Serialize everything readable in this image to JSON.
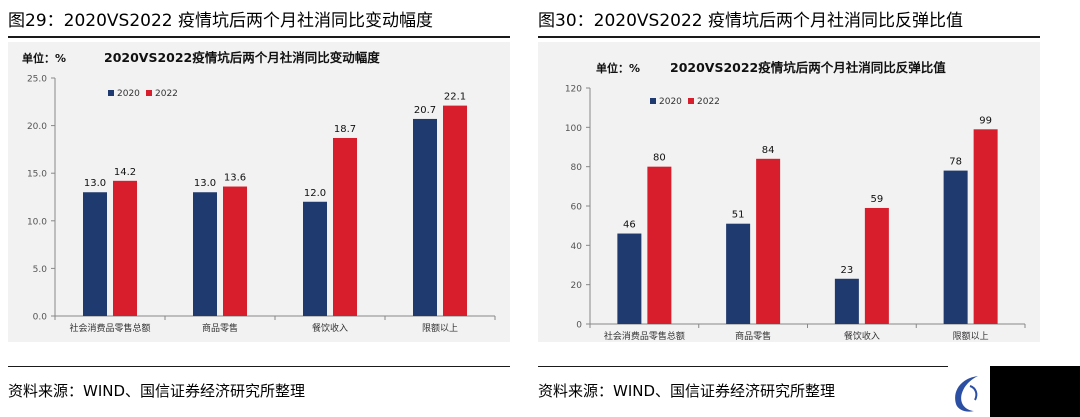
{
  "left": {
    "figure_title": "图29：2020VS2022 疫情坑后两个月社消同比变动幅度",
    "source": "资料来源：WIND、国信证券经济研究所整理"
  },
  "right": {
    "figure_title": "图30：2020VS2022 疫情坑后两个月社消同比反弹比值",
    "source": "资料来源：WIND、国信证券经济研究所整理"
  },
  "chart_data": [
    {
      "type": "bar",
      "unit_label": "单位：%",
      "title": "2020VS2022疫情坑后两个月社消同比变动幅度",
      "categories": [
        "社会消费品零售总额",
        "商品零售",
        "餐饮收入",
        "限额以上"
      ],
      "series": [
        {
          "name": "2020",
          "color": "#1f3a6e",
          "values": [
            13.0,
            13.0,
            12.0,
            20.7
          ],
          "labels": [
            "13.0",
            "13.0",
            "12.0",
            "20.7"
          ]
        },
        {
          "name": "2022",
          "color": "#d81e2c",
          "values": [
            14.2,
            13.6,
            18.7,
            22.1
          ],
          "labels": [
            "14.2",
            "13.6",
            "18.7",
            "22.1"
          ]
        }
      ],
      "ylim": [
        0,
        25
      ],
      "yticks": [
        0,
        5,
        10,
        15,
        20,
        25
      ],
      "ytick_labels": [
        "0.0",
        "5.0",
        "10.0",
        "15.0",
        "20.0",
        "25.0"
      ],
      "xlabel": "",
      "ylabel": "",
      "legend": "top-left",
      "grid": false
    },
    {
      "type": "bar",
      "unit_label": "单位：%",
      "title": "2020VS2022疫情坑后两个月社消同比反弹比值",
      "categories": [
        "社会消费品零售总额",
        "商品零售",
        "餐饮收入",
        "限额以上"
      ],
      "series": [
        {
          "name": "2020",
          "color": "#1f3a6e",
          "values": [
            46,
            51,
            23,
            78
          ],
          "labels": [
            "46",
            "51",
            "23",
            "78"
          ]
        },
        {
          "name": "2022",
          "color": "#d81e2c",
          "values": [
            80,
            84,
            59,
            99
          ],
          "labels": [
            "80",
            "84",
            "59",
            "99"
          ]
        }
      ],
      "ylim": [
        0,
        120
      ],
      "yticks": [
        0,
        20,
        40,
        60,
        80,
        100,
        120
      ],
      "ytick_labels": [
        "0",
        "20",
        "40",
        "60",
        "80",
        "100",
        "120"
      ],
      "xlabel": "",
      "ylabel": "",
      "legend": "top-left",
      "grid": false
    }
  ]
}
